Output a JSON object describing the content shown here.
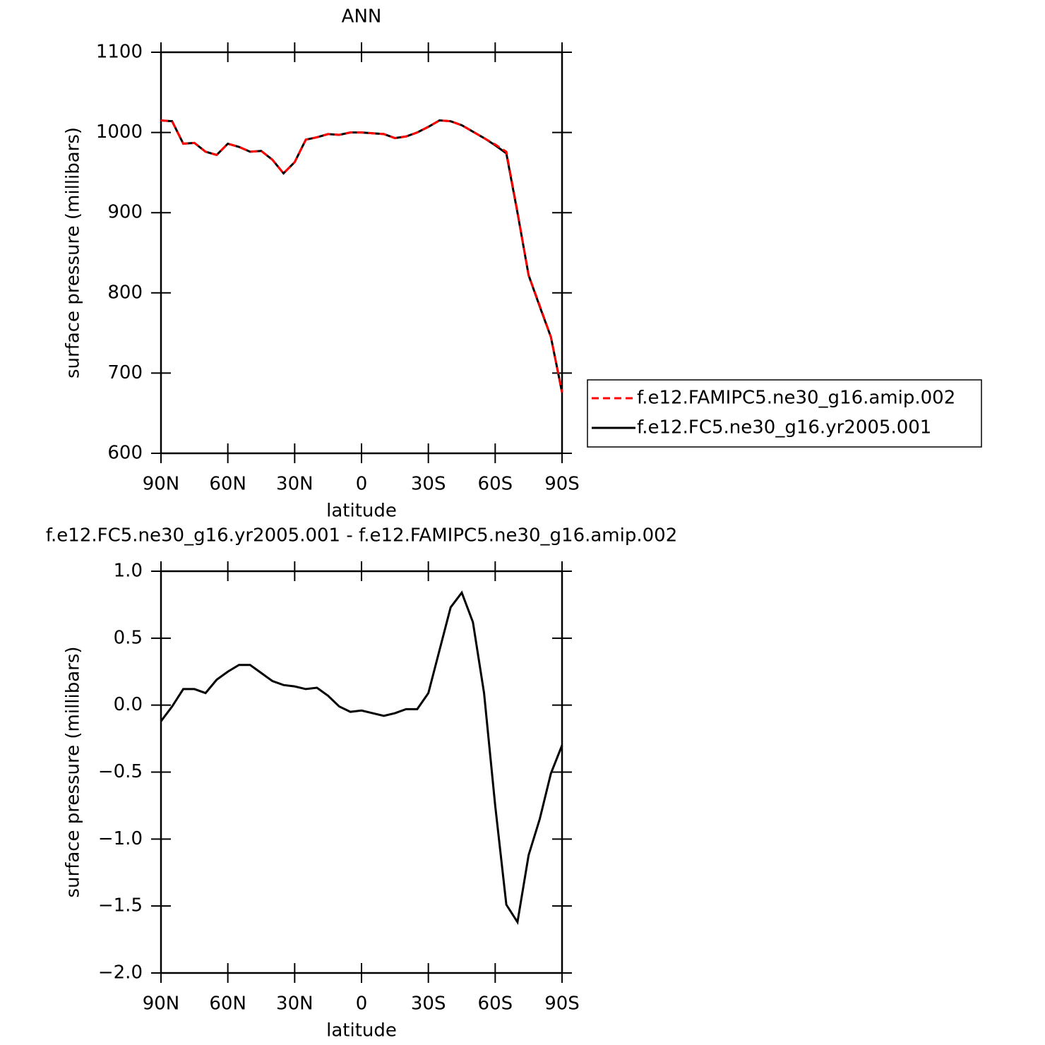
{
  "chart_data": [
    {
      "type": "line",
      "title": "ANN",
      "x_label": "latitude",
      "y_label": "surface pressure (millibars)",
      "x": [
        90,
        85,
        80,
        75,
        70,
        65,
        60,
        55,
        50,
        45,
        40,
        35,
        30,
        25,
        20,
        15,
        10,
        5,
        0,
        -5,
        -10,
        -15,
        -20,
        -25,
        -30,
        -35,
        -40,
        -45,
        -50,
        -55,
        -60,
        -65,
        -70,
        -75,
        -80,
        -85,
        -90
      ],
      "series": [
        {
          "name": "f.e12.FAMIPC5.ne30_g16.amip.002",
          "color": "#ff0000",
          "dashed": true,
          "values": [
            1015,
            1014,
            986,
            987,
            976,
            972,
            986,
            982,
            976,
            977,
            966,
            949,
            963,
            991,
            994,
            998,
            997,
            1000,
            1000,
            999,
            998,
            993,
            995,
            1000,
            1007,
            1015,
            1014,
            1009,
            1001,
            993,
            985,
            976,
            901,
            822,
            784,
            745,
            676
          ]
        },
        {
          "name": "f.e12.FC5.ne30_g16.yr2005.001",
          "color": "#000000",
          "dashed": false,
          "values": [
            1015,
            1014,
            986,
            987,
            976,
            972,
            986,
            982,
            976,
            977,
            966,
            949,
            963,
            991,
            994,
            998,
            997,
            1000,
            1000,
            999,
            998,
            993,
            995,
            1000,
            1007,
            1015,
            1014,
            1009,
            1001,
            993,
            984,
            974,
            900,
            822,
            783,
            745,
            676
          ]
        }
      ],
      "xlim": [
        90,
        -90
      ],
      "xticks": [
        {
          "value": 90,
          "label": "90N"
        },
        {
          "value": 60,
          "label": "60N"
        },
        {
          "value": 30,
          "label": "30N"
        },
        0,
        {
          "value": -30,
          "label": "30S"
        },
        {
          "value": -60,
          "label": "60S"
        },
        {
          "value": -90,
          "label": "90S"
        }
      ],
      "ylim": [
        600,
        1100
      ],
      "yticks": [
        600,
        700,
        800,
        900,
        1000,
        1100
      ],
      "legend": "right"
    },
    {
      "type": "line",
      "title": "f.e12.FC5.ne30_g16.yr2005.001 - f.e12.FAMIPC5.ne30_g16.amip.002",
      "x_label": "latitude",
      "y_label": "surface pressure (millibars)",
      "x": [
        90,
        85,
        80,
        75,
        70,
        65,
        60,
        55,
        50,
        45,
        40,
        35,
        30,
        25,
        20,
        15,
        10,
        5,
        0,
        -5,
        -10,
        -15,
        -20,
        -25,
        -30,
        -35,
        -40,
        -45,
        -50,
        -55,
        -60,
        -65,
        -70,
        -75,
        -80,
        -85,
        -90
      ],
      "series": [
        {
          "color": "#000000",
          "dashed": false,
          "values": [
            -0.12,
            -0.01,
            0.12,
            0.12,
            0.09,
            0.19,
            0.25,
            0.3,
            0.3,
            0.24,
            0.18,
            0.15,
            0.14,
            0.12,
            0.13,
            0.07,
            -0.01,
            -0.05,
            -0.04,
            -0.06,
            -0.08,
            -0.06,
            -0.03,
            -0.03,
            0.09,
            0.41,
            0.73,
            0.84,
            0.62,
            0.09,
            -0.75,
            -1.49,
            -1.62,
            -1.12,
            -0.85,
            -0.51,
            -0.3
          ]
        }
      ],
      "xlim": [
        90,
        -90
      ],
      "xticks": [
        {
          "value": 90,
          "label": "90N"
        },
        {
          "value": 60,
          "label": "60N"
        },
        {
          "value": 30,
          "label": "30N"
        },
        0,
        {
          "value": -30,
          "label": "30S"
        },
        {
          "value": -60,
          "label": "60S"
        },
        {
          "value": -90,
          "label": "90S"
        }
      ],
      "ylim": [
        -2,
        1
      ],
      "yticks": [
        {
          "value": -2,
          "label": "−2.0"
        },
        {
          "value": -1.5,
          "label": "−1.5"
        },
        {
          "value": -1,
          "label": "−1.0"
        },
        {
          "value": -0.5,
          "label": "−0.5"
        },
        {
          "value": 0,
          "label": "0.0"
        },
        0.5,
        {
          "value": 1,
          "label": "1.0"
        }
      ]
    }
  ]
}
